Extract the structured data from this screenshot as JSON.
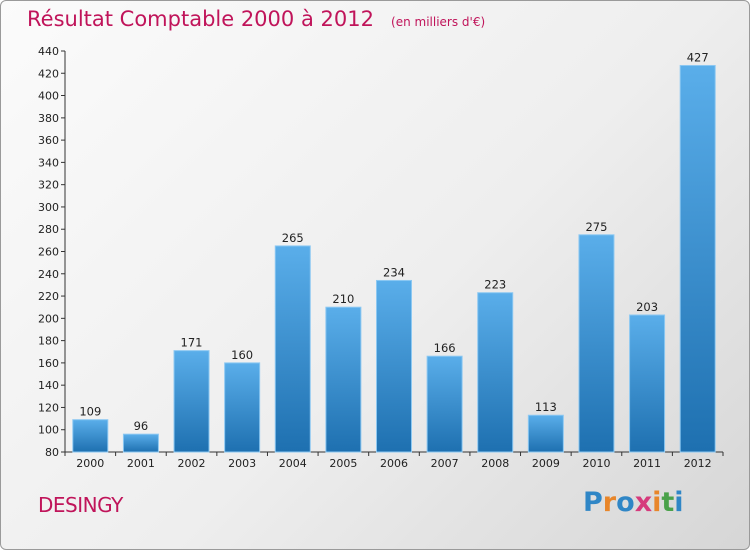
{
  "title": "Résultat Comptable 2000 à 2012",
  "subtitle": "(en milliers d'€)",
  "commune": "DESINGY",
  "logo": {
    "text": "Proxiti",
    "colors": [
      "#2f86c6",
      "#e8862a",
      "#2f86c6",
      "#d63a7c",
      "#e8862a",
      "#4aa14a",
      "#2f86c6"
    ]
  },
  "colors": {
    "title": "#c0145a",
    "bar_light": "#5aaeea",
    "bar_dark": "#1e70b0",
    "axis": "#333333",
    "grid": "#c8c8c8"
  },
  "chart_data": {
    "type": "bar",
    "title": "Résultat Comptable 2000 à 2012",
    "subtitle": "(en milliers d'€)",
    "categories": [
      "2000",
      "2001",
      "2002",
      "2003",
      "2004",
      "2005",
      "2006",
      "2007",
      "2008",
      "2009",
      "2010",
      "2011",
      "2012"
    ],
    "values": [
      109,
      96,
      171,
      160,
      265,
      210,
      234,
      166,
      223,
      113,
      275,
      203,
      427
    ],
    "ylim": [
      80,
      440
    ],
    "yticks": [
      80,
      100,
      120,
      140,
      160,
      180,
      200,
      220,
      240,
      260,
      280,
      300,
      320,
      340,
      360,
      380,
      400,
      420,
      440
    ],
    "xlabel": "",
    "ylabel": "",
    "grid": false,
    "data_labels": true
  }
}
